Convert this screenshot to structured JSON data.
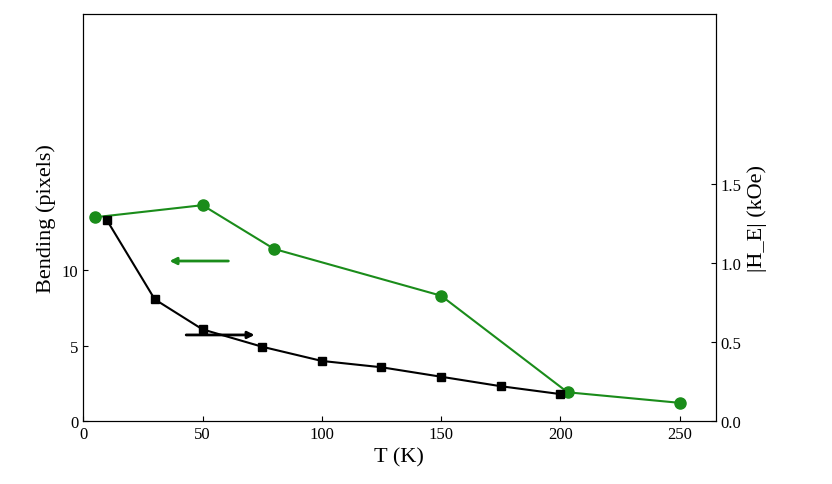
{
  "chart_data": {
    "type": "line",
    "x_label": "T (K)",
    "y_label": "Bending (pixels)",
    "y2_label": "|H_E| (kOe)",
    "xlim": [
      0,
      265
    ],
    "xticks": [
      0,
      50,
      100,
      150,
      200,
      250
    ],
    "ylim": [
      0,
      27
    ],
    "yticks": [
      0,
      5,
      10
    ],
    "y2lim": [
      0,
      2.58
    ],
    "y2ticks": [
      {
        "value": 0,
        "label": "0.0"
      },
      0.5,
      {
        "value": 1,
        "label": "1.0"
      },
      1.5
    ],
    "series": [
      {
        "color": "#1a8c1a",
        "marker": "o",
        "line_style": "solid",
        "x": [
          5,
          50,
          80,
          150,
          203,
          250
        ],
        "values": [
          13.5,
          14.3,
          11.4,
          8.3,
          1.9,
          1.2
        ]
      },
      {
        "color": "#000000",
        "marker": "s",
        "line_style": "solid",
        "axis": "y2",
        "x": [
          10,
          30,
          50,
          75,
          100,
          125,
          150,
          175,
          200
        ],
        "values": [
          1.27,
          0.77,
          0.58,
          0.47,
          0.38,
          0.34,
          0.28,
          0.22,
          0.17
        ]
      }
    ]
  }
}
